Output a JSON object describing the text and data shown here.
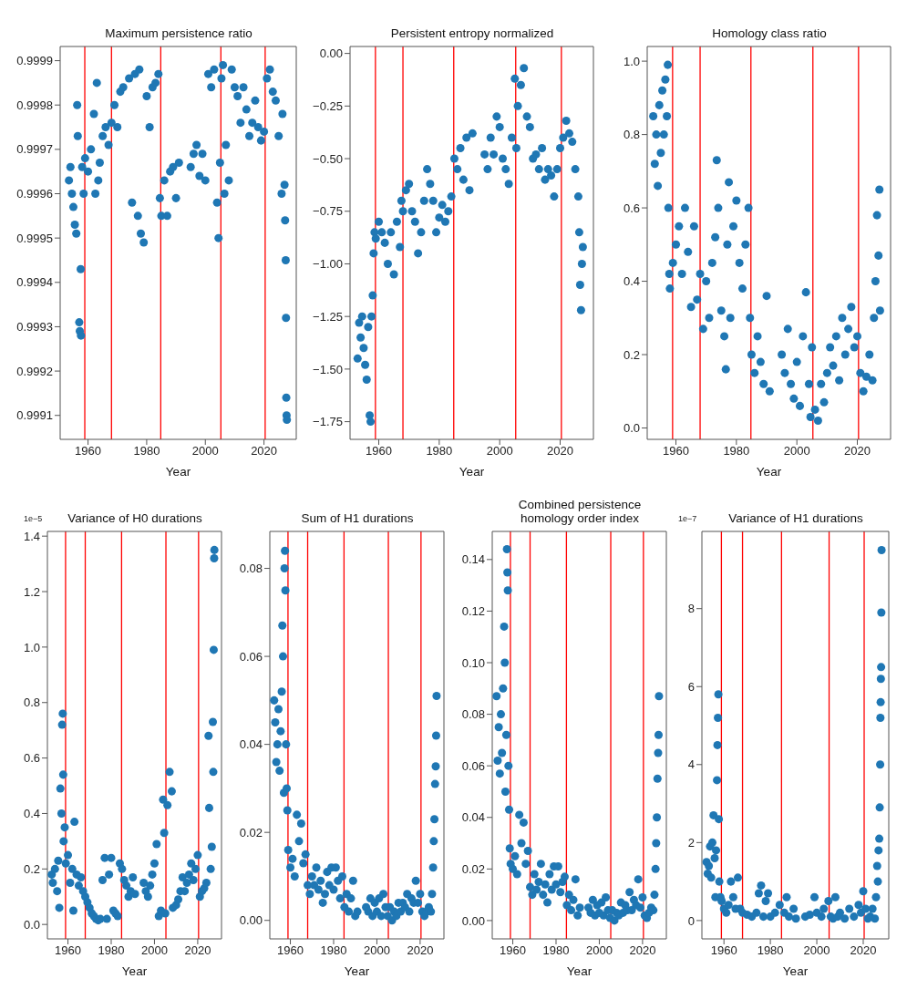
{
  "chart_data": [
    {
      "type": "scatter",
      "title": "Maximum persistence ratio",
      "xlabel": "Year",
      "marker": "circle",
      "xlim": [
        1950.5,
        2031
      ],
      "xticks": [
        1960,
        1980,
        2000,
        2020
      ],
      "ylim": [
        0.999046,
        0.999932
      ],
      "yticks": [
        0.9991,
        0.9992,
        0.9993,
        0.9994,
        0.9995,
        0.9996,
        0.9997,
        0.9998,
        0.9999
      ],
      "ref_lines": [
        {
          "axis": "x",
          "value": 1958.9,
          "color": "#ff0000"
        },
        {
          "axis": "x",
          "value": 1968,
          "color": "#ff0000"
        },
        {
          "axis": "x",
          "value": 1984.8,
          "color": "#ff0000"
        },
        {
          "axis": "x",
          "value": 2005.3,
          "color": "#ff0000"
        },
        {
          "axis": "x",
          "value": 2020.4,
          "color": "#ff0000"
        }
      ],
      "x": [
        1953.5,
        1954,
        1954.5,
        1955,
        1955.5,
        1956,
        1956.3,
        1956.5,
        1957,
        1957.2,
        1957.5,
        1957.6,
        1958,
        1958.5,
        1959,
        1960,
        1961,
        1962,
        1962.5,
        1963,
        1963.5,
        1964,
        1965,
        1966,
        1967,
        1968,
        1969,
        1970,
        1971,
        1972,
        1974,
        1975,
        1976,
        1977,
        1977.5,
        1978,
        1979,
        1980,
        1981,
        1982,
        1983,
        1984,
        1984.5,
        1985,
        1986,
        1987,
        1988,
        1989,
        1990,
        1991,
        1995,
        1996,
        1997,
        1998,
        1999,
        2000,
        2001,
        2002,
        2003,
        2004,
        2004.5,
        2005,
        2005.5,
        2006,
        2006.5,
        2007,
        2008,
        2009,
        2010,
        2011,
        2012,
        2013,
        2014,
        2015,
        2016,
        2017,
        2018,
        2019,
        2020,
        2021,
        2022,
        2023,
        2024,
        2025,
        2026,
        2026.3,
        2027,
        2027.2,
        2027.4,
        2027.5,
        2027.6,
        2027.7,
        2027.8
      ],
      "series": [
        {
          "color": "#1f77b4",
          "values": [
            0.99963,
            0.99966,
            0.9996,
            0.99957,
            0.99953,
            0.99951,
            0.9998,
            0.99973,
            0.99931,
            0.99929,
            0.99943,
            0.99928,
            0.99966,
            0.9996,
            0.99968,
            0.99965,
            0.9997,
            0.99978,
            0.9996,
            0.99985,
            0.99963,
            0.99967,
            0.99973,
            0.99975,
            0.99971,
            0.99976,
            0.9998,
            0.99975,
            0.99983,
            0.99984,
            0.99986,
            0.99958,
            0.99987,
            0.99955,
            0.99988,
            0.99951,
            0.99949,
            0.99982,
            0.99975,
            0.99984,
            0.99985,
            0.99987,
            0.99959,
            0.99955,
            0.99963,
            0.99955,
            0.99965,
            0.99966,
            0.99959,
            0.99967,
            0.99966,
            0.99969,
            0.99971,
            0.99964,
            0.99969,
            0.99963,
            0.99987,
            0.99984,
            0.99988,
            0.99958,
            0.9995,
            0.99967,
            0.99986,
            0.99989,
            0.9996,
            0.99971,
            0.99963,
            0.99988,
            0.99984,
            0.99982,
            0.99976,
            0.99984,
            0.99979,
            0.99973,
            0.99976,
            0.99981,
            0.99975,
            0.99972,
            0.99974,
            0.99986,
            0.99988,
            0.99983,
            0.99981,
            0.99973,
            0.9996,
            0.99978,
            0.99962,
            0.99954,
            0.99945,
            0.99932,
            0.99914,
            0.9991,
            0.99909
          ]
        }
      ]
    },
    {
      "type": "scatter",
      "title": "Persistent entropy normalized",
      "xlabel": "Year",
      "marker": "circle",
      "xlim": [
        1950.5,
        2031
      ],
      "xticks": [
        1960,
        1980,
        2000,
        2020
      ],
      "ylim": [
        -1.834,
        0.033
      ],
      "yticks": [
        {
          "value": -1.75,
          "label": "−1.75"
        },
        {
          "value": -1.5,
          "label": "−1.50"
        },
        {
          "value": -1.25,
          "label": "−1.25"
        },
        {
          "value": -1,
          "label": "−1.00"
        },
        {
          "value": -0.75,
          "label": "−0.75"
        },
        {
          "value": -0.5,
          "label": "−0.50"
        },
        {
          "value": -0.25,
          "label": "−0.25"
        },
        {
          "value": 0,
          "label": "0.00"
        }
      ],
      "ref_lines": [
        {
          "axis": "x",
          "value": 1958.9,
          "color": "#ff0000"
        },
        {
          "axis": "x",
          "value": 1968,
          "color": "#ff0000"
        },
        {
          "axis": "x",
          "value": 1984.8,
          "color": "#ff0000"
        },
        {
          "axis": "x",
          "value": 2005.3,
          "color": "#ff0000"
        },
        {
          "axis": "x",
          "value": 2020.4,
          "color": "#ff0000"
        }
      ],
      "x": [
        1953,
        1953.5,
        1954,
        1954.5,
        1955,
        1955.5,
        1956,
        1956.5,
        1957,
        1957.3,
        1957.6,
        1958,
        1958.3,
        1958.6,
        1959,
        1960,
        1961,
        1962,
        1963,
        1964,
        1965,
        1966,
        1967,
        1967.5,
        1968,
        1969,
        1970,
        1971,
        1972,
        1973,
        1974,
        1975,
        1976,
        1977,
        1978,
        1979,
        1980,
        1981,
        1982,
        1983,
        1984,
        1985,
        1986,
        1987,
        1988,
        1989,
        1990,
        1991,
        1995,
        1996,
        1997,
        1998,
        1999,
        2000,
        2001,
        2002,
        2003,
        2004,
        2005,
        2005.5,
        2006,
        2007,
        2008,
        2009,
        2010,
        2011,
        2012,
        2013,
        2014,
        2015,
        2016,
        2017,
        2018,
        2019,
        2020,
        2021,
        2022,
        2023,
        2024,
        2025,
        2026,
        2026.3,
        2026.6,
        2026.9,
        2027.2,
        2027.5
      ],
      "series": [
        {
          "color": "#1f77b4",
          "values": [
            -1.45,
            -1.28,
            -1.35,
            -1.25,
            -1.4,
            -1.48,
            -1.55,
            -1.3,
            -1.72,
            -1.75,
            -1.25,
            -1.15,
            -0.95,
            -0.85,
            -0.88,
            -0.8,
            -0.85,
            -0.9,
            -1,
            -0.85,
            -1.05,
            -0.8,
            -0.92,
            -0.7,
            -0.75,
            -0.65,
            -0.62,
            -0.75,
            -0.8,
            -0.95,
            -0.85,
            -0.7,
            -0.55,
            -0.62,
            -0.7,
            -0.85,
            -0.78,
            -0.72,
            -0.8,
            -0.75,
            -0.68,
            -0.5,
            -0.55,
            -0.45,
            -0.6,
            -0.4,
            -0.65,
            -0.38,
            -0.48,
            -0.55,
            -0.4,
            -0.48,
            -0.3,
            -0.35,
            -0.5,
            -0.55,
            -0.62,
            -0.4,
            -0.12,
            -0.45,
            -0.25,
            -0.15,
            -0.07,
            -0.3,
            -0.35,
            -0.5,
            -0.48,
            -0.55,
            -0.45,
            -0.6,
            -0.55,
            -0.58,
            -0.68,
            -0.55,
            -0.45,
            -0.4,
            -0.32,
            -0.38,
            -0.42,
            -0.55,
            -0.68,
            -0.85,
            -1.1,
            -1.22,
            -1,
            -0.92
          ]
        }
      ]
    },
    {
      "type": "scatter",
      "title": "Homology class ratio",
      "xlabel": "Year",
      "marker": "circle",
      "xlim": [
        1950.5,
        2031
      ],
      "xticks": [
        1960,
        1980,
        2000,
        2020
      ],
      "ylim": [
        -0.031,
        1.04
      ],
      "yticks": [
        {
          "value": 0,
          "label": "0.0"
        },
        0.2,
        0.4,
        0.6,
        0.8,
        {
          "value": 1,
          "label": "1.0"
        }
      ],
      "ref_lines": [
        {
          "axis": "x",
          "value": 1958.9,
          "color": "#ff0000"
        },
        {
          "axis": "x",
          "value": 1968,
          "color": "#ff0000"
        },
        {
          "axis": "x",
          "value": 1984.8,
          "color": "#ff0000"
        },
        {
          "axis": "x",
          "value": 2005.3,
          "color": "#ff0000"
        },
        {
          "axis": "x",
          "value": 2020.4,
          "color": "#ff0000"
        }
      ],
      "x": [
        1952.5,
        1953,
        1953.5,
        1954,
        1954.5,
        1955,
        1955.5,
        1956,
        1956.5,
        1957,
        1957.3,
        1957.5,
        1957.8,
        1958,
        1959,
        1960,
        1961,
        1962,
        1963,
        1964,
        1965,
        1966,
        1967,
        1968,
        1969,
        1970,
        1971,
        1972,
        1973,
        1973.5,
        1974,
        1975,
        1976,
        1976.5,
        1977,
        1977.5,
        1978,
        1979,
        1980,
        1981,
        1982,
        1983,
        1984,
        1984.5,
        1985,
        1986,
        1987,
        1988,
        1989,
        1990,
        1991,
        1995,
        1996,
        1997,
        1998,
        1999,
        2000,
        2001,
        2002,
        2003,
        2004,
        2004.5,
        2005,
        2006,
        2007,
        2008,
        2009,
        2010,
        2011,
        2012,
        2013,
        2014,
        2015,
        2016,
        2017,
        2018,
        2019,
        2020,
        2021,
        2022,
        2023,
        2024,
        2025,
        2025.5,
        2026,
        2026.5,
        2027,
        2027.3,
        2027.5
      ],
      "series": [
        {
          "color": "#1f77b4",
          "values": [
            0.85,
            0.72,
            0.8,
            0.66,
            0.88,
            0.75,
            0.92,
            0.8,
            0.95,
            0.85,
            0.99,
            0.6,
            0.42,
            0.38,
            0.45,
            0.5,
            0.55,
            0.42,
            0.6,
            0.48,
            0.33,
            0.55,
            0.35,
            0.42,
            0.27,
            0.4,
            0.3,
            0.45,
            0.52,
            0.73,
            0.6,
            0.32,
            0.25,
            0.16,
            0.5,
            0.67,
            0.3,
            0.55,
            0.62,
            0.45,
            0.38,
            0.5,
            0.6,
            0.3,
            0.2,
            0.15,
            0.25,
            0.18,
            0.12,
            0.36,
            0.1,
            0.2,
            0.15,
            0.27,
            0.12,
            0.08,
            0.18,
            0.06,
            0.25,
            0.37,
            0.12,
            0.03,
            0.22,
            0.05,
            0.02,
            0.12,
            0.07,
            0.15,
            0.22,
            0.17,
            0.25,
            0.13,
            0.3,
            0.2,
            0.27,
            0.33,
            0.22,
            0.25,
            0.15,
            0.1,
            0.14,
            0.2,
            0.13,
            0.3,
            0.4,
            0.58,
            0.47,
            0.65,
            0.32
          ]
        }
      ]
    },
    {
      "type": "scatter",
      "title": "Variance of H0 durations",
      "xlabel": "Year",
      "marker": "circle",
      "annotations": [
        "1e−5"
      ],
      "xlim": [
        1950.5,
        2031
      ],
      "xticks": [
        1960,
        1980,
        2000,
        2020
      ],
      "ylim": [
        -0.052,
        1.417
      ],
      "yticks": [
        {
          "value": 0,
          "label": "0.0"
        },
        0.2,
        0.4,
        0.6,
        0.8,
        {
          "value": 1,
          "label": "1.0"
        },
        1.2,
        1.4
      ],
      "ref_lines": [
        {
          "axis": "x",
          "value": 1958.9,
          "color": "#ff0000"
        },
        {
          "axis": "x",
          "value": 1968,
          "color": "#ff0000"
        },
        {
          "axis": "x",
          "value": 1984.8,
          "color": "#ff0000"
        },
        {
          "axis": "x",
          "value": 2005.3,
          "color": "#ff0000"
        },
        {
          "axis": "x",
          "value": 2020.4,
          "color": "#ff0000"
        }
      ],
      "x": [
        1952.5,
        1953,
        1954,
        1955,
        1955.5,
        1956,
        1956.5,
        1957,
        1957.3,
        1957.6,
        1957.8,
        1958,
        1958.5,
        1959,
        1960,
        1961,
        1962,
        1962.5,
        1963,
        1964,
        1965,
        1966,
        1967,
        1968,
        1969,
        1970,
        1971,
        1972,
        1973,
        1974,
        1975,
        1976,
        1977,
        1978,
        1979,
        1980,
        1981,
        1982,
        1983,
        1984,
        1985,
        1986,
        1987,
        1988,
        1989,
        1990,
        1991,
        1995,
        1996,
        1997,
        1998,
        1999,
        2000,
        2001,
        2002,
        2003,
        2004,
        2004.5,
        2005,
        2006,
        2007,
        2008,
        2008.5,
        2010,
        2011,
        2012,
        2013,
        2014,
        2015,
        2016,
        2017,
        2018,
        2019,
        2020,
        2021,
        2022,
        2023,
        2024,
        2025,
        2025.3,
        2026,
        2026.5,
        2027,
        2027.2,
        2027.4,
        2027.6,
        2027.7
      ],
      "series": [
        {
          "color": "#1f77b4",
          "values": [
            0.18,
            0.15,
            0.2,
            0.12,
            0.23,
            0.06,
            0.49,
            0.4,
            0.72,
            0.76,
            0.54,
            0.3,
            0.35,
            0.22,
            0.25,
            0.15,
            0.2,
            0.05,
            0.37,
            0.18,
            0.14,
            0.17,
            0.12,
            0.1,
            0.08,
            0.06,
            0.04,
            0.03,
            0.02,
            0.015,
            0.02,
            0.16,
            0.24,
            0.02,
            0.18,
            0.24,
            0.05,
            0.04,
            0.03,
            0.22,
            0.2,
            0.16,
            0.14,
            0.1,
            0.12,
            0.17,
            0.11,
            0.15,
            0.12,
            0.1,
            0.14,
            0.18,
            0.22,
            0.29,
            0.03,
            0.05,
            0.45,
            0.33,
            0.04,
            0.43,
            0.55,
            0.48,
            0.06,
            0.07,
            0.09,
            0.12,
            0.17,
            0.12,
            0.15,
            0.18,
            0.22,
            0.16,
            0.2,
            0.25,
            0.1,
            0.12,
            0.13,
            0.15,
            0.68,
            0.42,
            0.2,
            0.28,
            0.73,
            0.55,
            0.99,
            1.32,
            1.35
          ]
        }
      ]
    },
    {
      "type": "scatter",
      "title": "Sum of H1 durations",
      "xlabel": "Year",
      "marker": "circle",
      "xlim": [
        1950.5,
        2031
      ],
      "xticks": [
        1960,
        1980,
        2000,
        2020
      ],
      "ylim": [
        -0.0042,
        0.0884
      ],
      "yticks": [
        {
          "value": 0,
          "label": "0.00"
        },
        {
          "value": 0.02,
          "label": "0.02"
        },
        {
          "value": 0.04,
          "label": "0.04"
        },
        {
          "value": 0.06,
          "label": "0.06"
        },
        {
          "value": 0.08,
          "label": "0.08"
        }
      ],
      "ref_lines": [
        {
          "axis": "x",
          "value": 1958.9,
          "color": "#ff0000"
        },
        {
          "axis": "x",
          "value": 1968,
          "color": "#ff0000"
        },
        {
          "axis": "x",
          "value": 1984.8,
          "color": "#ff0000"
        },
        {
          "axis": "x",
          "value": 2005.3,
          "color": "#ff0000"
        },
        {
          "axis": "x",
          "value": 2020.4,
          "color": "#ff0000"
        }
      ],
      "x": [
        1952.5,
        1953,
        1953.5,
        1954,
        1954.5,
        1955,
        1955.5,
        1956,
        1956.3,
        1956.6,
        1957,
        1957.3,
        1957.5,
        1957.7,
        1958,
        1958.3,
        1958.6,
        1959,
        1960,
        1961,
        1962,
        1963,
        1964,
        1965,
        1966,
        1967,
        1968,
        1969,
        1970,
        1971,
        1972,
        1973,
        1974,
        1975,
        1976,
        1977,
        1978,
        1979,
        1980,
        1981,
        1982,
        1983,
        1984,
        1985,
        1986,
        1987,
        1988,
        1989,
        1990,
        1991,
        1995,
        1996,
        1997,
        1998,
        1999,
        2000,
        2001,
        2002,
        2003,
        2004,
        2005,
        2006,
        2007,
        2008,
        2009,
        2010,
        2011,
        2012,
        2013,
        2014,
        2015,
        2016,
        2017,
        2018,
        2019,
        2020,
        2021,
        2022,
        2023,
        2024,
        2025,
        2025.5,
        2026,
        2026.3,
        2026.6,
        2026.9,
        2027.2,
        2027.4,
        2027.6
      ],
      "series": [
        {
          "color": "#1f77b4",
          "values": [
            0.05,
            0.045,
            0.036,
            0.04,
            0.048,
            0.034,
            0.043,
            0.052,
            0.067,
            0.06,
            0.029,
            0.08,
            0.084,
            0.075,
            0.04,
            0.03,
            0.025,
            0.016,
            0.012,
            0.014,
            0.01,
            0.024,
            0.018,
            0.022,
            0.013,
            0.015,
            0.008,
            0.006,
            0.01,
            0.008,
            0.012,
            0.007,
            0.009,
            0.004,
            0.006,
            0.011,
            0.008,
            0.012,
            0.007,
            0.012,
            0.009,
            0.005,
            0.01,
            0.003,
            0.006,
            0.002,
            0.005,
            0.009,
            0.001,
            0.002,
            0.003,
            0.002,
            0.005,
            0.001,
            0.004,
            0.002,
            0.005,
            0.001,
            0.006,
            0.003,
            0.001,
            0.003,
            0,
            0.002,
            0.001,
            0.004,
            0.002,
            0.004,
            0.003,
            0.006,
            0.002,
            0.005,
            0.004,
            0.009,
            0.004,
            0.006,
            0.002,
            0.001,
            0.002,
            0.003,
            0.002,
            0.006,
            0.012,
            0.018,
            0.023,
            0.031,
            0.035,
            0.042,
            0.051
          ]
        }
      ]
    },
    {
      "type": "scatter",
      "title": "Combined persistence homology order index",
      "xlabel": "Year",
      "marker": "circle",
      "xlim": [
        1950.5,
        2031
      ],
      "xticks": [
        1960,
        1980,
        2000,
        2020
      ],
      "ylim": [
        -0.0071,
        0.1509
      ],
      "yticks": [
        {
          "value": 0,
          "label": "0.00"
        },
        {
          "value": 0.02,
          "label": "0.02"
        },
        {
          "value": 0.04,
          "label": "0.04"
        },
        {
          "value": 0.06,
          "label": "0.06"
        },
        {
          "value": 0.08,
          "label": "0.08"
        },
        {
          "value": 0.1,
          "label": "0.10"
        },
        {
          "value": 0.12,
          "label": "0.12"
        },
        {
          "value": 0.14,
          "label": "0.14"
        }
      ],
      "ref_lines": [
        {
          "axis": "x",
          "value": 1958.9,
          "color": "#ff0000"
        },
        {
          "axis": "x",
          "value": 1968,
          "color": "#ff0000"
        },
        {
          "axis": "x",
          "value": 1984.8,
          "color": "#ff0000"
        },
        {
          "axis": "x",
          "value": 2005.3,
          "color": "#ff0000"
        },
        {
          "axis": "x",
          "value": 2020.4,
          "color": "#ff0000"
        }
      ],
      "x": [
        1952.5,
        1953,
        1953.5,
        1954,
        1954.5,
        1955,
        1955.5,
        1956,
        1956.3,
        1956.6,
        1957,
        1957.3,
        1957.5,
        1957.7,
        1958,
        1958.3,
        1958.6,
        1959,
        1960,
        1961,
        1962,
        1963,
        1964,
        1965,
        1966,
        1967,
        1968,
        1969,
        1970,
        1971,
        1972,
        1973,
        1974,
        1975,
        1976,
        1977,
        1978,
        1979,
        1980,
        1981,
        1982,
        1983,
        1984,
        1985,
        1986,
        1987,
        1988,
        1989,
        1990,
        1991,
        1995,
        1996,
        1997,
        1998,
        1999,
        2000,
        2001,
        2002,
        2003,
        2004,
        2005,
        2006,
        2007,
        2008,
        2009,
        2010,
        2011,
        2012,
        2013,
        2014,
        2015,
        2016,
        2017,
        2018,
        2019,
        2020,
        2021,
        2022,
        2023,
        2024,
        2025,
        2025.5,
        2026,
        2026.3,
        2026.6,
        2026.9,
        2027.2,
        2027.4,
        2027.6
      ],
      "series": [
        {
          "color": "#1f77b4",
          "values": [
            0.087,
            0.062,
            0.075,
            0.057,
            0.08,
            0.065,
            0.09,
            0.114,
            0.1,
            0.05,
            0.072,
            0.144,
            0.135,
            0.128,
            0.06,
            0.043,
            0.028,
            0.022,
            0.02,
            0.025,
            0.018,
            0.041,
            0.03,
            0.038,
            0.022,
            0.027,
            0.013,
            0.01,
            0.018,
            0.012,
            0.015,
            0.022,
            0.01,
            0.014,
            0.007,
            0.018,
            0.012,
            0.021,
            0.014,
            0.021,
            0.011,
            0.015,
            0.017,
            0.006,
            0.01,
            0.004,
            0.008,
            0.016,
            0.002,
            0.005,
            0.005,
            0.003,
            0.008,
            0.002,
            0.006,
            0.003,
            0.007,
            0.002,
            0.009,
            0.004,
            0.001,
            0.004,
            0,
            0.003,
            0.002,
            0.007,
            0.003,
            0.006,
            0.004,
            0.011,
            0.004,
            0.008,
            0.006,
            0.016,
            0.005,
            0.009,
            0.002,
            0.001,
            0.003,
            0.005,
            0.004,
            0.01,
            0.02,
            0.03,
            0.04,
            0.055,
            0.065,
            0.072,
            0.087
          ]
        }
      ]
    },
    {
      "type": "scatter",
      "title": "Variance of H1 durations",
      "xlabel": "Year",
      "marker": "circle",
      "annotations": [
        "1e−7"
      ],
      "xlim": [
        1950.5,
        2031
      ],
      "xticks": [
        1960,
        1980,
        2000,
        2020
      ],
      "ylim": [
        -0.47,
        9.98
      ],
      "yticks": [
        0,
        2,
        4,
        6,
        8
      ],
      "ref_lines": [
        {
          "axis": "x",
          "value": 1958.9,
          "color": "#ff0000"
        },
        {
          "axis": "x",
          "value": 1968,
          "color": "#ff0000"
        },
        {
          "axis": "x",
          "value": 1984.8,
          "color": "#ff0000"
        },
        {
          "axis": "x",
          "value": 2005.3,
          "color": "#ff0000"
        },
        {
          "axis": "x",
          "value": 2020.4,
          "color": "#ff0000"
        }
      ],
      "x": [
        1952.5,
        1953,
        1953.5,
        1954,
        1954.5,
        1955,
        1955.5,
        1956,
        1956.3,
        1956.6,
        1957,
        1957.2,
        1957.4,
        1957.6,
        1957.8,
        1958,
        1958.5,
        1959,
        1960,
        1961,
        1962,
        1963,
        1964,
        1965,
        1966,
        1967,
        1968,
        1970,
        1972,
        1974,
        1975,
        1976,
        1977,
        1978,
        1979,
        1980,
        1982,
        1984,
        1986,
        1987,
        1988,
        1990,
        1991,
        1995,
        1997,
        1999,
        2000,
        2002,
        2003,
        2005,
        2006,
        2007,
        2008,
        2009,
        2010,
        2012,
        2014,
        2016,
        2018,
        2019,
        2020,
        2021,
        2022,
        2023,
        2024,
        2025,
        2025.5,
        2026,
        2026.3,
        2026.6,
        2026.9,
        2027.1,
        2027.3,
        2027.4,
        2027.5,
        2027.6,
        2027.7,
        2027.8,
        2027.9
      ],
      "series": [
        {
          "color": "#1f77b4",
          "values": [
            1.5,
            1.2,
            1.4,
            1.9,
            1.1,
            2,
            2.7,
            1.6,
            0.6,
            1.8,
            3.6,
            4.5,
            5.2,
            5.8,
            2.6,
            1,
            0.6,
            0.5,
            0.3,
            0.2,
            0.4,
            1,
            0.6,
            0.3,
            1.1,
            0.3,
            0.2,
            0.15,
            0.1,
            0.2,
            0.7,
            0.9,
            0.1,
            0.5,
            0.7,
            0.1,
            0.2,
            0.4,
            0.2,
            0.6,
            0.1,
            0.3,
            0.05,
            0.1,
            0.15,
            0.6,
            0.2,
            0.1,
            0.3,
            0.5,
            0.1,
            0.05,
            0.6,
            0.1,
            0.2,
            0.05,
            0.3,
            0.1,
            0.4,
            0.2,
            0.75,
            0.3,
            0.05,
            0.1,
            0.3,
            0.05,
            0.6,
            1.4,
            1,
            1.8,
            2.1,
            2.9,
            4,
            5.2,
            5.6,
            6.2,
            6.5,
            7.9,
            9.5
          ]
        }
      ]
    }
  ]
}
